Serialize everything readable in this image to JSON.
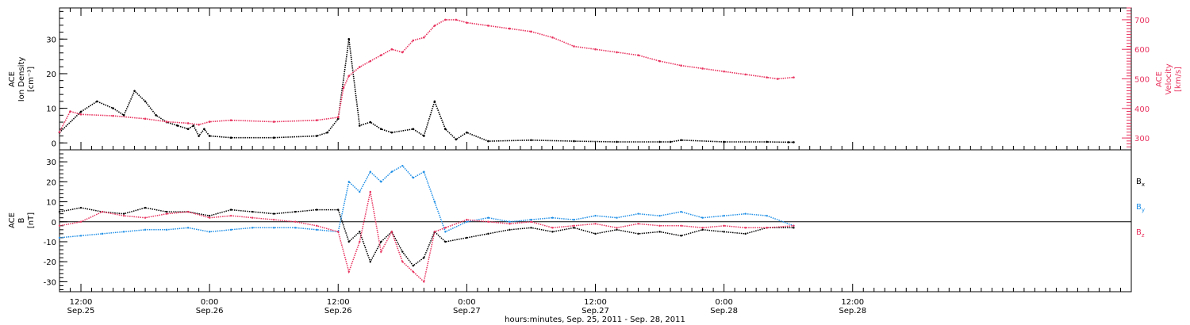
{
  "colors": {
    "black": "#000000",
    "red": "#e8335f",
    "blue": "#1f8fe6"
  },
  "xaxis": {
    "title": "hours:minutes, Sep. 25, 2011 - Sep. 28, 2011",
    "range_hours": [
      -2.0,
      98.0
    ],
    "major_ticks": [
      {
        "hour": 0,
        "time": "12:00",
        "date": "Sep.25"
      },
      {
        "hour": 12,
        "time": "0:00",
        "date": "Sep.26"
      },
      {
        "hour": 24,
        "time": "12:00",
        "date": "Sep.26"
      },
      {
        "hour": 36,
        "time": "0:00",
        "date": "Sep.27"
      },
      {
        "hour": 48,
        "time": "12:00",
        "date": "Sep.27"
      },
      {
        "hour": 60,
        "time": "0:00",
        "date": "Sep.28"
      },
      {
        "hour": 72,
        "time": "12:00",
        "date": "Sep.28"
      }
    ]
  },
  "top_panel": {
    "left_label": [
      "ACE",
      "Ion Density",
      "[cm⁻³]"
    ],
    "right_label": [
      "ACE",
      "Velocity",
      "[km/s]"
    ],
    "left_ticks": [
      "0",
      "10",
      "20",
      "30"
    ],
    "right_ticks": [
      "300",
      "400",
      "500",
      "600",
      "700"
    ]
  },
  "bottom_panel": {
    "left_label": [
      "ACE",
      "B",
      "[nT]"
    ],
    "ticks": [
      "-30",
      "-20",
      "-10",
      "0",
      "10",
      "20",
      "30"
    ],
    "legend": [
      {
        "base": "B",
        "sub": "x",
        "color": "#000000"
      },
      {
        "base": "B",
        "sub": "y",
        "color": "#1f8fe6"
      },
      {
        "base": "B",
        "sub": "z",
        "color": "#e8335f"
      }
    ]
  },
  "chart_data": [
    {
      "type": "scatter",
      "title": "",
      "xlabel": "hours:minutes, Sep. 25, 2011 - Sep. 28, 2011",
      "ylabel": "ACE Ion Density [cm⁻³]",
      "ylabel_right": "ACE Velocity [km/s]",
      "ylim": [
        -2,
        39
      ],
      "ylim_right": [
        260,
        740
      ],
      "x_unit": "hours since Sep.25 12:00",
      "series": [
        {
          "name": "Ion Density",
          "axis": "left",
          "color": "#000000",
          "x": [
            -2,
            0,
            1.5,
            3,
            4,
            5,
            6,
            7,
            8,
            9,
            10,
            10.5,
            11,
            11.5,
            12,
            14,
            18,
            22,
            23,
            24,
            25,
            26,
            27,
            28,
            29,
            31,
            32,
            33,
            34,
            35,
            36,
            38,
            42,
            46,
            50,
            54,
            55,
            56,
            60,
            64,
            66,
            66.5
          ],
          "y": [
            3,
            9,
            12,
            10,
            8,
            15,
            12,
            8,
            6,
            5,
            4,
            5,
            2,
            4,
            2,
            1.5,
            1.5,
            2,
            3,
            7,
            30,
            5,
            6,
            4,
            3,
            4,
            2,
            12,
            4,
            1,
            3,
            0.5,
            0.8,
            0.5,
            0.3,
            0.3,
            0.3,
            0.8,
            0.3,
            0.3,
            0.2,
            0.2
          ]
        },
        {
          "name": "Velocity",
          "axis": "right",
          "color": "#e8335f",
          "x": [
            -2,
            -1,
            0,
            3,
            6,
            8,
            10,
            11,
            12,
            14,
            18,
            22,
            24,
            24.5,
            25,
            26,
            27,
            28,
            29,
            30,
            31,
            32,
            33,
            34,
            35,
            36,
            38,
            40,
            42,
            44,
            46,
            48,
            50,
            52,
            54,
            56,
            58,
            60,
            62,
            64,
            65,
            66.5
          ],
          "y": [
            320,
            390,
            380,
            375,
            365,
            355,
            350,
            345,
            355,
            360,
            355,
            360,
            370,
            470,
            510,
            540,
            560,
            580,
            600,
            590,
            630,
            640,
            680,
            700,
            700,
            690,
            680,
            670,
            660,
            640,
            610,
            600,
            590,
            580,
            560,
            545,
            535,
            525,
            515,
            505,
            500,
            505
          ]
        }
      ]
    },
    {
      "type": "scatter",
      "title": "",
      "xlabel": "hours:minutes, Sep. 25, 2011 - Sep. 28, 2011",
      "ylabel": "ACE B [nT]",
      "ylim": [
        -35,
        36
      ],
      "x_unit": "hours since Sep.25 12:00",
      "series": [
        {
          "name": "Bx",
          "color": "#000000",
          "x": [
            -2,
            0,
            2,
            4,
            6,
            8,
            10,
            12,
            14,
            16,
            18,
            20,
            22,
            24,
            25,
            26,
            27,
            28,
            29,
            30,
            31,
            32,
            33,
            34,
            36,
            38,
            40,
            42,
            44,
            46,
            48,
            50,
            52,
            54,
            56,
            58,
            60,
            62,
            64,
            66.5
          ],
          "y": [
            5,
            7,
            5,
            4,
            7,
            5,
            5,
            3,
            6,
            5,
            4,
            5,
            6,
            6,
            -10,
            -5,
            -20,
            -10,
            -5,
            -15,
            -22,
            -18,
            -5,
            -10,
            -8,
            -6,
            -4,
            -3,
            -5,
            -3,
            -6,
            -4,
            -6,
            -5,
            -7,
            -4,
            -5,
            -6,
            -3,
            -3
          ]
        },
        {
          "name": "By",
          "color": "#1f8fe6",
          "x": [
            -2,
            0,
            2,
            4,
            6,
            8,
            10,
            12,
            14,
            16,
            18,
            20,
            22,
            24,
            25,
            26,
            27,
            28,
            29,
            30,
            31,
            32,
            33,
            34,
            36,
            38,
            40,
            42,
            44,
            46,
            48,
            50,
            52,
            54,
            56,
            58,
            60,
            62,
            64,
            66.5
          ],
          "y": [
            -8,
            -7,
            -6,
            -5,
            -4,
            -4,
            -3,
            -5,
            -4,
            -3,
            -3,
            -3,
            -4,
            -5,
            20,
            15,
            25,
            20,
            25,
            28,
            22,
            25,
            10,
            -5,
            0,
            2,
            0,
            1,
            2,
            1,
            3,
            2,
            4,
            3,
            5,
            2,
            3,
            4,
            3,
            -2
          ]
        },
        {
          "name": "Bz",
          "color": "#e8335f",
          "x": [
            -2,
            0,
            2,
            4,
            6,
            8,
            10,
            12,
            14,
            16,
            18,
            20,
            22,
            24,
            25,
            26,
            27,
            28,
            29,
            30,
            31,
            32,
            33,
            34,
            36,
            38,
            40,
            42,
            44,
            46,
            48,
            50,
            52,
            54,
            56,
            58,
            60,
            62,
            64,
            66.5
          ],
          "y": [
            -2,
            0,
            5,
            3,
            2,
            4,
            5,
            2,
            3,
            2,
            1,
            0,
            -2,
            -5,
            -25,
            -10,
            15,
            -15,
            -5,
            -20,
            -25,
            -30,
            -5,
            -3,
            1,
            0,
            -1,
            0,
            -3,
            -2,
            -1,
            -3,
            -1,
            -2,
            -2,
            -3,
            -2,
            -3,
            -3,
            -2
          ]
        }
      ]
    }
  ]
}
